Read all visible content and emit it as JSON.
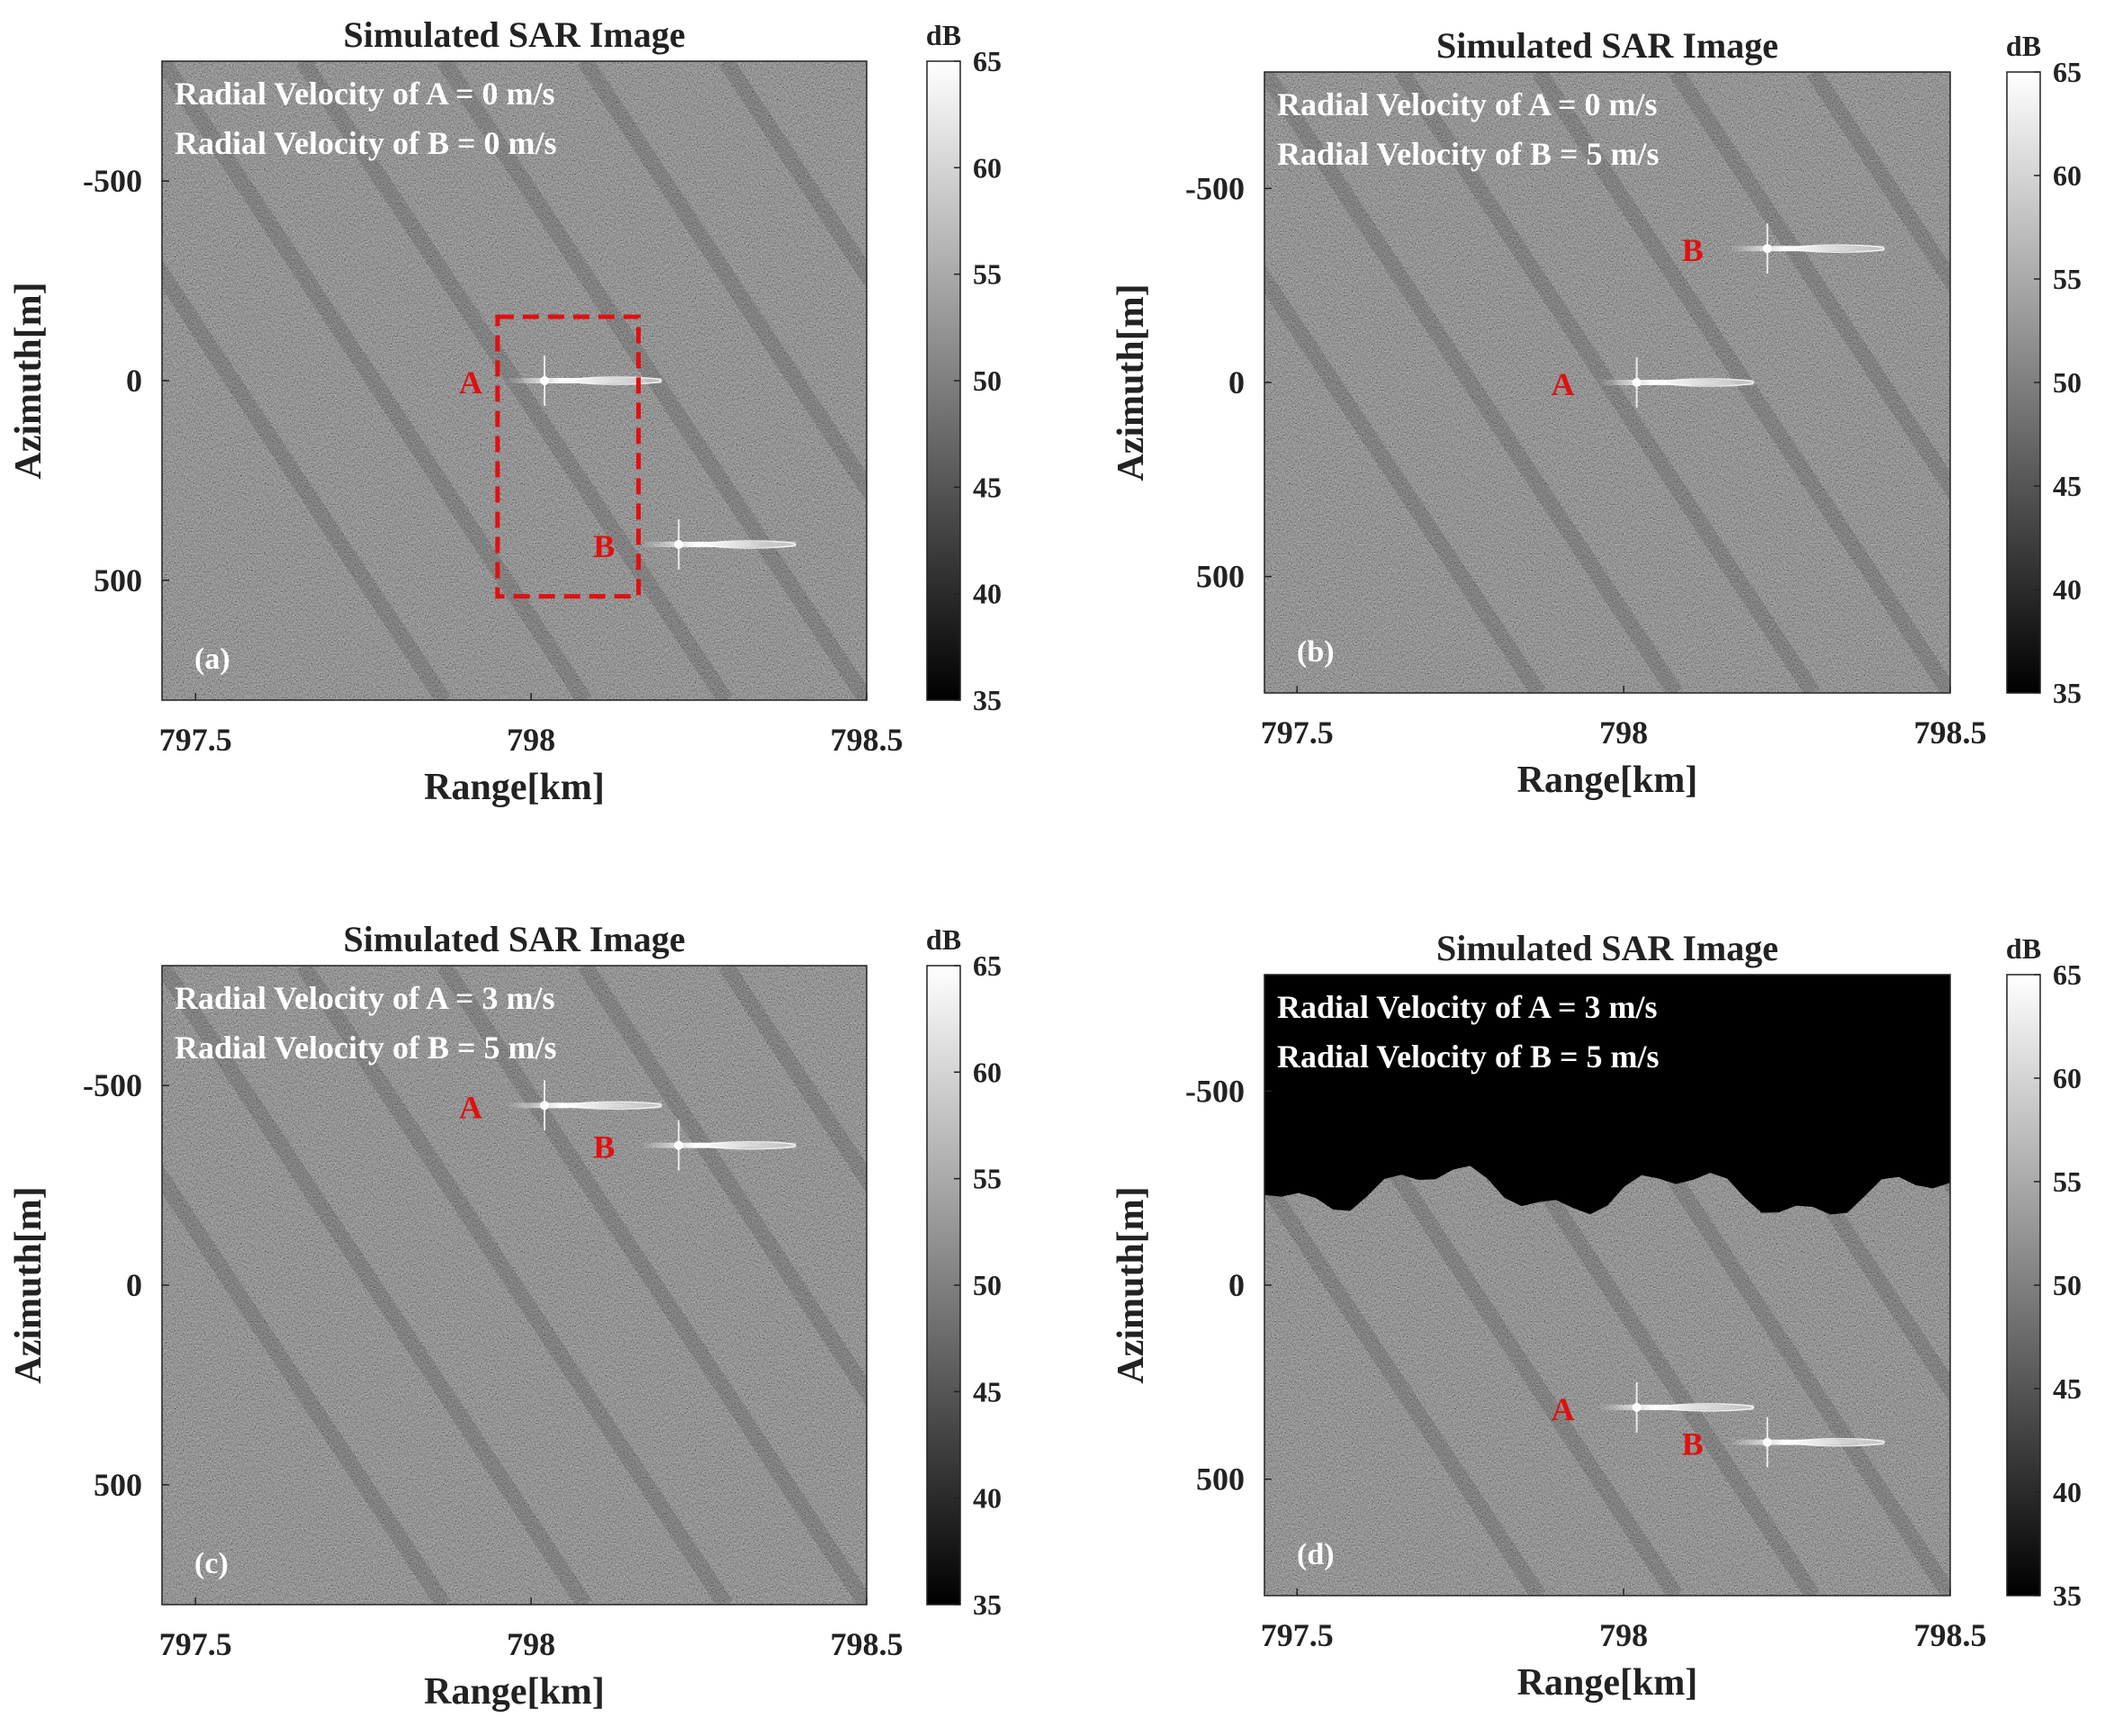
{
  "chart_data": [
    {
      "type": "heatmap",
      "panel_label": "(a)",
      "title": "Simulated SAR Image",
      "xlabel": "Range[km]",
      "ylabel": "Azimuth[m]",
      "xlim": [
        797.45,
        798.5
      ],
      "ylim": [
        -800,
        800
      ],
      "xticks": [
        797.5,
        798,
        798.5
      ],
      "xtick_labels": [
        "797.5",
        "798",
        "798.5"
      ],
      "yticks": [
        -500,
        0,
        500
      ],
      "ytick_labels": [
        "-500",
        "0",
        "500"
      ],
      "annotations": [
        "Radial Velocity of A = 0 m/s",
        "Radial Velocity of B = 0 m/s"
      ],
      "targets": [
        {
          "label": "A",
          "range_km": 798.02,
          "azimuth_m": 0
        },
        {
          "label": "B",
          "range_km": 798.22,
          "azimuth_m": 410
        }
      ],
      "dashed_box": {
        "range_km": [
          797.95,
          798.16
        ],
        "azimuth_m": [
          -160,
          540
        ]
      },
      "clutter": "full",
      "colorbar": {
        "label": "dB",
        "min": 35,
        "max": 65,
        "ticks": [
          "35",
          "40",
          "45",
          "50",
          "55",
          "60",
          "65"
        ]
      }
    },
    {
      "type": "heatmap",
      "panel_label": "(b)",
      "title": "Simulated SAR Image",
      "xlabel": "Range[km]",
      "ylabel": "Azimuth[m]",
      "xlim": [
        797.45,
        798.5
      ],
      "ylim": [
        -800,
        800
      ],
      "xticks": [
        797.5,
        798,
        798.5
      ],
      "xtick_labels": [
        "797.5",
        "798",
        "798.5"
      ],
      "yticks": [
        -500,
        0,
        500
      ],
      "ytick_labels": [
        "-500",
        "0",
        "500"
      ],
      "annotations": [
        "Radial Velocity of A = 0 m/s",
        "Radial Velocity of B = 5 m/s"
      ],
      "targets": [
        {
          "label": "A",
          "range_km": 798.02,
          "azimuth_m": 0
        },
        {
          "label": "B",
          "range_km": 798.22,
          "azimuth_m": -345
        }
      ],
      "clutter": "full",
      "colorbar": {
        "label": "dB",
        "min": 35,
        "max": 65,
        "ticks": [
          "35",
          "40",
          "45",
          "50",
          "55",
          "60",
          "65"
        ]
      }
    },
    {
      "type": "heatmap",
      "panel_label": "(c)",
      "title": "Simulated SAR Image",
      "xlabel": "Range[km]",
      "ylabel": "Azimuth[m]",
      "xlim": [
        797.45,
        798.5
      ],
      "ylim": [
        -800,
        800
      ],
      "xticks": [
        797.5,
        798,
        798.5
      ],
      "xtick_labels": [
        "797.5",
        "798",
        "798.5"
      ],
      "yticks": [
        -500,
        0,
        500
      ],
      "ytick_labels": [
        "-500",
        "0",
        "500"
      ],
      "annotations": [
        "Radial Velocity of A = 3 m/s",
        "Radial Velocity of B = 5 m/s"
      ],
      "targets": [
        {
          "label": "A",
          "range_km": 798.02,
          "azimuth_m": -450
        },
        {
          "label": "B",
          "range_km": 798.22,
          "azimuth_m": -350
        }
      ],
      "clutter": "full",
      "colorbar": {
        "label": "dB",
        "min": 35,
        "max": 65,
        "ticks": [
          "35",
          "40",
          "45",
          "50",
          "55",
          "60",
          "65"
        ]
      }
    },
    {
      "type": "heatmap",
      "panel_label": "(d)",
      "title": "Simulated SAR Image",
      "xlabel": "Range[km]",
      "ylabel": "Azimuth[m]",
      "xlim": [
        797.45,
        798.5
      ],
      "ylim": [
        -800,
        800
      ],
      "xticks": [
        797.5,
        798,
        798.5
      ],
      "xtick_labels": [
        "797.5",
        "798",
        "798.5"
      ],
      "yticks": [
        -500,
        0,
        500
      ],
      "ytick_labels": [
        "-500",
        "0",
        "500"
      ],
      "annotations": [
        "Radial Velocity of A = 3 m/s",
        "Radial Velocity of B = 5 m/s"
      ],
      "targets": [
        {
          "label": "A",
          "range_km": 798.02,
          "azimuth_m": 315
        },
        {
          "label": "B",
          "range_km": 798.22,
          "azimuth_m": 405
        }
      ],
      "clutter": "lower",
      "colorbar": {
        "label": "dB",
        "min": 35,
        "max": 65,
        "ticks": [
          "35",
          "40",
          "45",
          "50",
          "55",
          "60",
          "65"
        ]
      }
    }
  ],
  "colors": {
    "marker": "#e0100f",
    "background": "#ffffff",
    "axis_text": "#222222",
    "in_image_text": "#ffffff"
  }
}
